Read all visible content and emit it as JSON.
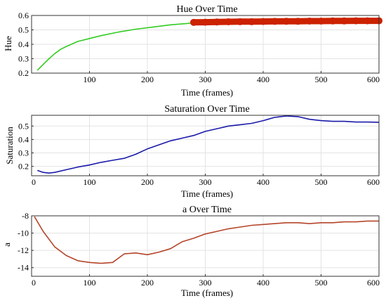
{
  "chart_data": [
    {
      "type": "line",
      "title": "Hue Over Time",
      "xlabel": "Time (frames)",
      "ylabel": "Hue",
      "xlim": [
        0,
        600
      ],
      "ylim": [
        0.2,
        0.6
      ],
      "xticks": [
        100,
        200,
        300,
        400,
        500,
        600
      ],
      "yticks": [
        0.2,
        0.3,
        0.4,
        0.5,
        0.6
      ],
      "grid": true,
      "series": [
        {
          "color": "#33cc22",
          "x": [
            10,
            20,
            30,
            40,
            50,
            60,
            80,
            100,
            120,
            150,
            180,
            210,
            240,
            270,
            280
          ],
          "y": [
            0.22,
            0.26,
            0.3,
            0.335,
            0.365,
            0.385,
            0.42,
            0.44,
            0.46,
            0.485,
            0.505,
            0.52,
            0.535,
            0.545,
            0.55
          ]
        },
        {
          "color": "#cc2200",
          "marker": "circle",
          "x": [
            280,
            300,
            320,
            340,
            360,
            380,
            400,
            420,
            440,
            460,
            480,
            500,
            520,
            540,
            560,
            580,
            600
          ],
          "y": [
            0.552,
            0.553,
            0.555,
            0.556,
            0.557,
            0.557,
            0.558,
            0.559,
            0.56,
            0.56,
            0.561,
            0.561,
            0.562,
            0.562,
            0.563,
            0.563,
            0.563
          ]
        }
      ]
    },
    {
      "type": "line",
      "title": "Saturation Over Time",
      "xlabel": "Time (frames)",
      "ylabel": "Saturation",
      "xlim": [
        0,
        600
      ],
      "ylim": [
        0.13,
        0.58
      ],
      "xticks": [
        0,
        100,
        200,
        300,
        400,
        500,
        600
      ],
      "yticks": [
        0.2,
        0.3,
        0.4,
        0.5
      ],
      "grid": true,
      "series": [
        {
          "color": "#1a1aaa",
          "x": [
            10,
            20,
            30,
            40,
            60,
            80,
            100,
            120,
            140,
            160,
            180,
            200,
            220,
            240,
            260,
            280,
            300,
            320,
            340,
            360,
            380,
            400,
            420,
            440,
            460,
            480,
            500,
            520,
            540,
            560,
            580,
            600
          ],
          "y": [
            0.17,
            0.155,
            0.15,
            0.155,
            0.175,
            0.195,
            0.21,
            0.23,
            0.245,
            0.26,
            0.29,
            0.33,
            0.36,
            0.39,
            0.41,
            0.43,
            0.46,
            0.48,
            0.5,
            0.51,
            0.52,
            0.54,
            0.565,
            0.575,
            0.57,
            0.55,
            0.54,
            0.535,
            0.535,
            0.53,
            0.53,
            0.528
          ]
        }
      ]
    },
    {
      "type": "line",
      "title": "a Over Time",
      "xlabel": "Time (frames)",
      "ylabel": "a",
      "xlim": [
        0,
        600
      ],
      "ylim": [
        -15,
        -8
      ],
      "xticks": [
        0,
        100,
        200,
        300,
        400,
        500,
        600
      ],
      "yticks": [
        -8,
        -10,
        -12,
        -14
      ],
      "grid": true,
      "series": [
        {
          "color": "#b5452a",
          "x": [
            5,
            20,
            40,
            60,
            80,
            100,
            120,
            140,
            160,
            180,
            200,
            220,
            240,
            260,
            280,
            300,
            320,
            340,
            360,
            380,
            400,
            420,
            440,
            460,
            480,
            500,
            520,
            540,
            560,
            580,
            600
          ],
          "y": [
            -8.1,
            -9.8,
            -11.6,
            -12.6,
            -13.2,
            -13.4,
            -13.5,
            -13.4,
            -12.4,
            -12.3,
            -12.5,
            -12.2,
            -11.8,
            -11.0,
            -10.6,
            -10.1,
            -9.8,
            -9.5,
            -9.3,
            -9.1,
            -9.0,
            -8.9,
            -8.8,
            -8.8,
            -8.9,
            -8.8,
            -8.8,
            -8.7,
            -8.7,
            -8.6,
            -8.6
          ]
        }
      ]
    }
  ]
}
